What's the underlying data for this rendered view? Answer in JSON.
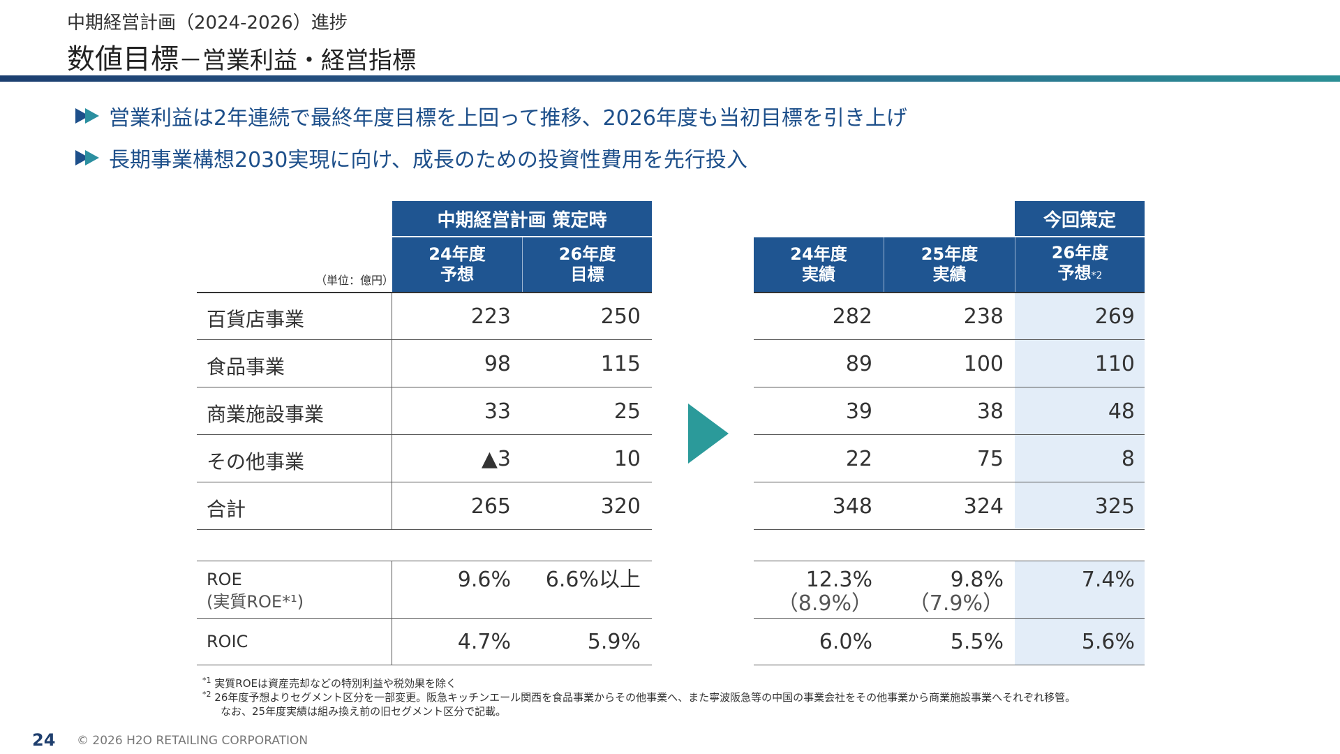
{
  "header": {
    "supertitle": "中期経営計画（2024-2026）進捗",
    "title": "数値目標",
    "subtitle": "－営業利益・経営指標"
  },
  "bullets": [
    "営業利益は2年連続で最終年度目標を上回って推移、2026年度も当初目標を引き上げ",
    "長期事業構想2030実現に向け、成長のための投資性費用を先行投入"
  ],
  "table": {
    "unit": "（単位：億円）",
    "plan_group": "中期経営計画 策定時",
    "revised_group": "今回策定",
    "columns": [
      {
        "line1": "24年度",
        "line2": "予想"
      },
      {
        "line1": "26年度",
        "line2": "目標"
      },
      {
        "line1": "24年度",
        "line2": "実績"
      },
      {
        "line1": "25年度",
        "line2": "実績"
      },
      {
        "line1": "26年度",
        "line2": "予想",
        "mark": "*2"
      }
    ],
    "rows": [
      {
        "label": "百貨店事業",
        "values": [
          "223",
          "250",
          "282",
          "238",
          "269"
        ]
      },
      {
        "label": "食品事業",
        "values": [
          "98",
          "115",
          "89",
          "100",
          "110"
        ]
      },
      {
        "label": "商業施設事業",
        "values": [
          "33",
          "25",
          "39",
          "38",
          "48"
        ]
      },
      {
        "label": "その他事業",
        "values": [
          "▲3",
          "10",
          "22",
          "75",
          "8"
        ]
      },
      {
        "label": "合計",
        "values": [
          "265",
          "320",
          "348",
          "324",
          "325"
        ]
      }
    ],
    "roe": {
      "label1": "ROE",
      "label2": "(実質ROE*¹)",
      "values": [
        "9.6%",
        "6.6%以上",
        "12.3%",
        "9.8%",
        "7.4%"
      ],
      "sub_values": [
        "",
        "",
        "（8.9%）",
        "（7.9%）",
        ""
      ]
    },
    "roic": {
      "label": "ROIC",
      "values": [
        "4.7%",
        "5.9%",
        "6.0%",
        "5.5%",
        "5.6%"
      ]
    }
  },
  "notes": {
    "n1_mark": "*1",
    "n1": "実質ROEは資産売却などの特別利益や税効果を除く",
    "n2_mark": "*2",
    "n2": "26年度予想よりセグメント区分を一部変更。阪急キッチンエール関西を食品事業からその他事業へ、また寧波阪急等の中国の事業会社をその他事業から商業施設事業へそれぞれ移管。",
    "n2b": "なお、25年度実績は組み換え前の旧セグメント区分で記載。"
  },
  "footer": {
    "page": "24",
    "copyright": "© 2026 H2O RETAILING CORPORATION"
  },
  "colors": {
    "header_blue": "#1f5591",
    "accent_teal": "#2b9a9a",
    "shade": "#e3edf8"
  }
}
